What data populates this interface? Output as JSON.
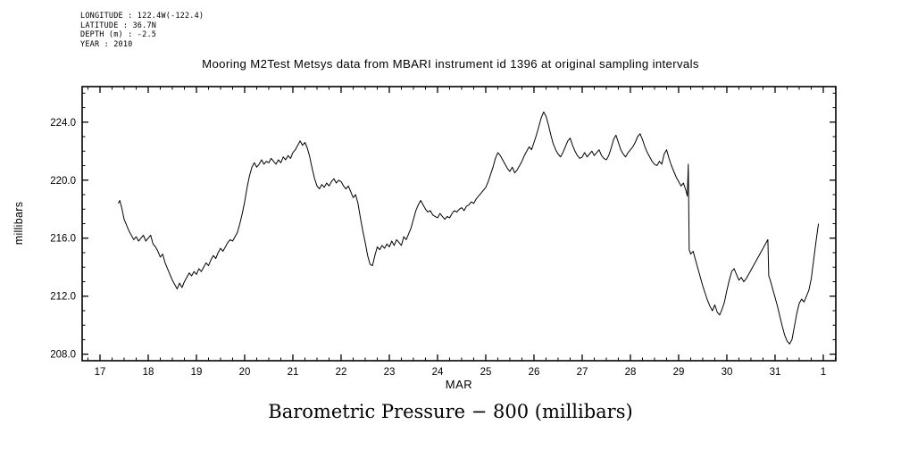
{
  "header": {
    "lines": [
      "LONGITUDE : 122.4W(-122.4)",
      "LATITUDE : 36.7N",
      "DEPTH (m) : -2.5",
      "YEAR : 2010"
    ]
  },
  "title": "Mooring M2Test Metsys data from MBARI instrument id 1396 at original sampling intervals",
  "caption": "Barometric Pressure − 800 (millibars)",
  "chart_data": {
    "type": "line",
    "title": "Mooring M2Test Metsys data from MBARI instrument id 1396 at original sampling intervals",
    "xlabel": "MAR",
    "ylabel": "millibars",
    "xlim": [
      16.63,
      32.26
    ],
    "ylim": [
      207.55,
      226.45
    ],
    "grid": false,
    "legend": "none",
    "line_color": "#000000",
    "x_ticks": [
      {
        "pos": 17,
        "label": "17"
      },
      {
        "pos": 18,
        "label": "18"
      },
      {
        "pos": 19,
        "label": "19"
      },
      {
        "pos": 20,
        "label": "20"
      },
      {
        "pos": 21,
        "label": "21"
      },
      {
        "pos": 22,
        "label": "22"
      },
      {
        "pos": 23,
        "label": "23"
      },
      {
        "pos": 24,
        "label": "24"
      },
      {
        "pos": 25,
        "label": "25"
      },
      {
        "pos": 26,
        "label": "26"
      },
      {
        "pos": 27,
        "label": "27"
      },
      {
        "pos": 28,
        "label": "28"
      },
      {
        "pos": 29,
        "label": "29"
      },
      {
        "pos": 30,
        "label": "30"
      },
      {
        "pos": 31,
        "label": "31"
      },
      {
        "pos": 32,
        "label": "1"
      }
    ],
    "y_ticks": [
      {
        "pos": 208,
        "label": "208.0"
      },
      {
        "pos": 212,
        "label": "212.0"
      },
      {
        "pos": 216,
        "label": "216.0"
      },
      {
        "pos": 220,
        "label": "220.0"
      },
      {
        "pos": 224,
        "label": "224.0"
      }
    ],
    "series": [
      {
        "name": "barometric_pressure_minus_800",
        "units": "millibars",
        "points": [
          [
            17.38,
            218.4
          ],
          [
            17.41,
            218.6
          ],
          [
            17.45,
            218.1
          ],
          [
            17.5,
            217.3
          ],
          [
            17.55,
            216.9
          ],
          [
            17.6,
            216.5
          ],
          [
            17.65,
            216.2
          ],
          [
            17.7,
            215.9
          ],
          [
            17.75,
            216.1
          ],
          [
            17.8,
            215.8
          ],
          [
            17.85,
            216.0
          ],
          [
            17.9,
            216.2
          ],
          [
            17.95,
            215.8
          ],
          [
            18.0,
            216.0
          ],
          [
            18.05,
            216.2
          ],
          [
            18.1,
            215.6
          ],
          [
            18.15,
            215.4
          ],
          [
            18.2,
            215.1
          ],
          [
            18.25,
            214.7
          ],
          [
            18.3,
            214.9
          ],
          [
            18.35,
            214.3
          ],
          [
            18.4,
            213.9
          ],
          [
            18.45,
            213.5
          ],
          [
            18.5,
            213.1
          ],
          [
            18.55,
            212.8
          ],
          [
            18.6,
            212.5
          ],
          [
            18.65,
            212.9
          ],
          [
            18.7,
            212.6
          ],
          [
            18.75,
            213.0
          ],
          [
            18.8,
            213.3
          ],
          [
            18.85,
            213.6
          ],
          [
            18.9,
            213.4
          ],
          [
            18.95,
            213.7
          ],
          [
            19.0,
            213.5
          ],
          [
            19.05,
            213.9
          ],
          [
            19.1,
            213.7
          ],
          [
            19.15,
            214.0
          ],
          [
            19.2,
            214.3
          ],
          [
            19.25,
            214.1
          ],
          [
            19.3,
            214.5
          ],
          [
            19.35,
            214.8
          ],
          [
            19.4,
            214.6
          ],
          [
            19.45,
            215.0
          ],
          [
            19.5,
            215.3
          ],
          [
            19.55,
            215.1
          ],
          [
            19.6,
            215.4
          ],
          [
            19.65,
            215.7
          ],
          [
            19.7,
            215.9
          ],
          [
            19.75,
            215.8
          ],
          [
            19.8,
            216.1
          ],
          [
            19.85,
            216.4
          ],
          [
            19.9,
            217.0
          ],
          [
            19.95,
            217.7
          ],
          [
            20.0,
            218.5
          ],
          [
            20.05,
            219.5
          ],
          [
            20.1,
            220.3
          ],
          [
            20.15,
            220.9
          ],
          [
            20.2,
            221.2
          ],
          [
            20.25,
            220.9
          ],
          [
            20.3,
            221.1
          ],
          [
            20.35,
            221.4
          ],
          [
            20.4,
            221.1
          ],
          [
            20.45,
            221.3
          ],
          [
            20.5,
            221.2
          ],
          [
            20.55,
            221.5
          ],
          [
            20.6,
            221.3
          ],
          [
            20.65,
            221.1
          ],
          [
            20.7,
            221.4
          ],
          [
            20.75,
            221.2
          ],
          [
            20.8,
            221.6
          ],
          [
            20.85,
            221.4
          ],
          [
            20.9,
            221.7
          ],
          [
            20.95,
            221.5
          ],
          [
            21.0,
            221.9
          ],
          [
            21.05,
            222.1
          ],
          [
            21.1,
            222.4
          ],
          [
            21.15,
            222.7
          ],
          [
            21.2,
            222.4
          ],
          [
            21.25,
            222.6
          ],
          [
            21.3,
            222.2
          ],
          [
            21.35,
            221.6
          ],
          [
            21.4,
            220.8
          ],
          [
            21.45,
            220.1
          ],
          [
            21.5,
            219.6
          ],
          [
            21.55,
            219.4
          ],
          [
            21.6,
            219.7
          ],
          [
            21.65,
            219.5
          ],
          [
            21.7,
            219.8
          ],
          [
            21.75,
            219.6
          ],
          [
            21.8,
            219.9
          ],
          [
            21.85,
            220.1
          ],
          [
            21.9,
            219.8
          ],
          [
            21.95,
            220.0
          ],
          [
            22.0,
            219.9
          ],
          [
            22.05,
            219.6
          ],
          [
            22.1,
            219.4
          ],
          [
            22.15,
            219.6
          ],
          [
            22.2,
            219.2
          ],
          [
            22.25,
            218.8
          ],
          [
            22.3,
            219.0
          ],
          [
            22.35,
            218.4
          ],
          [
            22.4,
            217.4
          ],
          [
            22.45,
            216.5
          ],
          [
            22.5,
            215.7
          ],
          [
            22.55,
            214.8
          ],
          [
            22.6,
            214.2
          ],
          [
            22.65,
            214.1
          ],
          [
            22.7,
            214.8
          ],
          [
            22.75,
            215.4
          ],
          [
            22.8,
            215.2
          ],
          [
            22.85,
            215.5
          ],
          [
            22.9,
            215.3
          ],
          [
            22.95,
            215.6
          ],
          [
            23.0,
            215.4
          ],
          [
            23.05,
            215.8
          ],
          [
            23.1,
            215.5
          ],
          [
            23.15,
            215.9
          ],
          [
            23.2,
            215.7
          ],
          [
            23.25,
            215.5
          ],
          [
            23.3,
            216.1
          ],
          [
            23.35,
            215.9
          ],
          [
            23.4,
            216.3
          ],
          [
            23.45,
            216.7
          ],
          [
            23.5,
            217.3
          ],
          [
            23.55,
            217.9
          ],
          [
            23.6,
            218.3
          ],
          [
            23.65,
            218.6
          ],
          [
            23.7,
            218.3
          ],
          [
            23.75,
            218.0
          ],
          [
            23.8,
            217.8
          ],
          [
            23.85,
            217.9
          ],
          [
            23.9,
            217.6
          ],
          [
            23.95,
            217.5
          ],
          [
            24.0,
            217.4
          ],
          [
            24.05,
            217.7
          ],
          [
            24.1,
            217.5
          ],
          [
            24.15,
            217.3
          ],
          [
            24.2,
            217.5
          ],
          [
            24.25,
            217.4
          ],
          [
            24.3,
            217.7
          ],
          [
            24.35,
            217.9
          ],
          [
            24.4,
            217.8
          ],
          [
            24.45,
            218.0
          ],
          [
            24.5,
            218.1
          ],
          [
            24.55,
            217.9
          ],
          [
            24.6,
            218.2
          ],
          [
            24.65,
            218.3
          ],
          [
            24.7,
            218.5
          ],
          [
            24.75,
            218.4
          ],
          [
            24.8,
            218.7
          ],
          [
            24.85,
            218.9
          ],
          [
            24.9,
            219.1
          ],
          [
            24.95,
            219.3
          ],
          [
            25.0,
            219.5
          ],
          [
            25.05,
            219.9
          ],
          [
            25.1,
            220.4
          ],
          [
            25.15,
            220.9
          ],
          [
            25.2,
            221.5
          ],
          [
            25.25,
            221.9
          ],
          [
            25.3,
            221.7
          ],
          [
            25.35,
            221.4
          ],
          [
            25.4,
            221.1
          ],
          [
            25.45,
            220.8
          ],
          [
            25.5,
            220.6
          ],
          [
            25.55,
            220.9
          ],
          [
            25.6,
            220.5
          ],
          [
            25.65,
            220.7
          ],
          [
            25.7,
            221.0
          ],
          [
            25.75,
            221.3
          ],
          [
            25.8,
            221.7
          ],
          [
            25.85,
            222.0
          ],
          [
            25.9,
            222.3
          ],
          [
            25.95,
            222.1
          ],
          [
            26.0,
            222.6
          ],
          [
            26.05,
            223.1
          ],
          [
            26.1,
            223.7
          ],
          [
            26.15,
            224.3
          ],
          [
            26.2,
            224.7
          ],
          [
            26.25,
            224.4
          ],
          [
            26.3,
            223.8
          ],
          [
            26.35,
            223.1
          ],
          [
            26.4,
            222.5
          ],
          [
            26.45,
            222.1
          ],
          [
            26.5,
            221.8
          ],
          [
            26.55,
            221.6
          ],
          [
            26.6,
            221.9
          ],
          [
            26.65,
            222.3
          ],
          [
            26.7,
            222.7
          ],
          [
            26.75,
            222.9
          ],
          [
            26.8,
            222.4
          ],
          [
            26.85,
            222.0
          ],
          [
            26.9,
            221.7
          ],
          [
            26.95,
            221.5
          ],
          [
            27.0,
            221.6
          ],
          [
            27.05,
            221.9
          ],
          [
            27.1,
            221.6
          ],
          [
            27.15,
            221.8
          ],
          [
            27.2,
            222.0
          ],
          [
            27.25,
            221.7
          ],
          [
            27.3,
            221.9
          ],
          [
            27.35,
            222.1
          ],
          [
            27.4,
            221.7
          ],
          [
            27.45,
            221.5
          ],
          [
            27.5,
            221.4
          ],
          [
            27.55,
            221.7
          ],
          [
            27.6,
            222.2
          ],
          [
            27.65,
            222.8
          ],
          [
            27.7,
            223.1
          ],
          [
            27.75,
            222.6
          ],
          [
            27.8,
            222.1
          ],
          [
            27.85,
            221.8
          ],
          [
            27.9,
            221.6
          ],
          [
            27.95,
            221.9
          ],
          [
            28.0,
            222.1
          ],
          [
            28.05,
            222.3
          ],
          [
            28.1,
            222.6
          ],
          [
            28.15,
            223.0
          ],
          [
            28.2,
            223.2
          ],
          [
            28.25,
            222.8
          ],
          [
            28.3,
            222.3
          ],
          [
            28.35,
            221.9
          ],
          [
            28.4,
            221.6
          ],
          [
            28.45,
            221.3
          ],
          [
            28.5,
            221.1
          ],
          [
            28.55,
            221.0
          ],
          [
            28.6,
            221.3
          ],
          [
            28.65,
            221.1
          ],
          [
            28.7,
            221.8
          ],
          [
            28.75,
            222.1
          ],
          [
            28.8,
            221.5
          ],
          [
            28.85,
            221.0
          ],
          [
            28.9,
            220.6
          ],
          [
            28.95,
            220.2
          ],
          [
            29.0,
            219.9
          ],
          [
            29.05,
            219.6
          ],
          [
            29.1,
            219.8
          ],
          [
            29.15,
            219.3
          ],
          [
            29.18,
            218.9
          ],
          [
            29.2,
            221.1
          ],
          [
            29.22,
            215.2
          ],
          [
            29.25,
            214.9
          ],
          [
            29.3,
            215.1
          ],
          [
            29.35,
            214.5
          ],
          [
            29.4,
            213.9
          ],
          [
            29.45,
            213.3
          ],
          [
            29.5,
            212.7
          ],
          [
            29.55,
            212.2
          ],
          [
            29.6,
            211.7
          ],
          [
            29.65,
            211.3
          ],
          [
            29.7,
            211.0
          ],
          [
            29.75,
            211.4
          ],
          [
            29.8,
            210.9
          ],
          [
            29.85,
            210.7
          ],
          [
            29.9,
            211.1
          ],
          [
            29.95,
            211.6
          ],
          [
            30.0,
            212.4
          ],
          [
            30.05,
            213.1
          ],
          [
            30.1,
            213.7
          ],
          [
            30.15,
            213.9
          ],
          [
            30.2,
            213.5
          ],
          [
            30.25,
            213.1
          ],
          [
            30.3,
            213.3
          ],
          [
            30.35,
            213.0
          ],
          [
            30.4,
            213.2
          ],
          [
            30.85,
            215.9
          ],
          [
            30.87,
            213.4
          ],
          [
            30.9,
            213.1
          ],
          [
            30.95,
            212.5
          ],
          [
            31.0,
            211.9
          ],
          [
            31.05,
            211.3
          ],
          [
            31.1,
            210.6
          ],
          [
            31.15,
            209.9
          ],
          [
            31.2,
            209.3
          ],
          [
            31.25,
            208.9
          ],
          [
            31.3,
            208.7
          ],
          [
            31.35,
            209.0
          ],
          [
            31.4,
            209.9
          ],
          [
            31.45,
            210.8
          ],
          [
            31.5,
            211.5
          ],
          [
            31.55,
            211.8
          ],
          [
            31.6,
            211.6
          ],
          [
            31.65,
            212.0
          ],
          [
            31.7,
            212.4
          ],
          [
            31.75,
            213.2
          ],
          [
            31.8,
            214.5
          ],
          [
            31.85,
            215.8
          ],
          [
            31.9,
            217.0
          ]
        ]
      }
    ]
  }
}
